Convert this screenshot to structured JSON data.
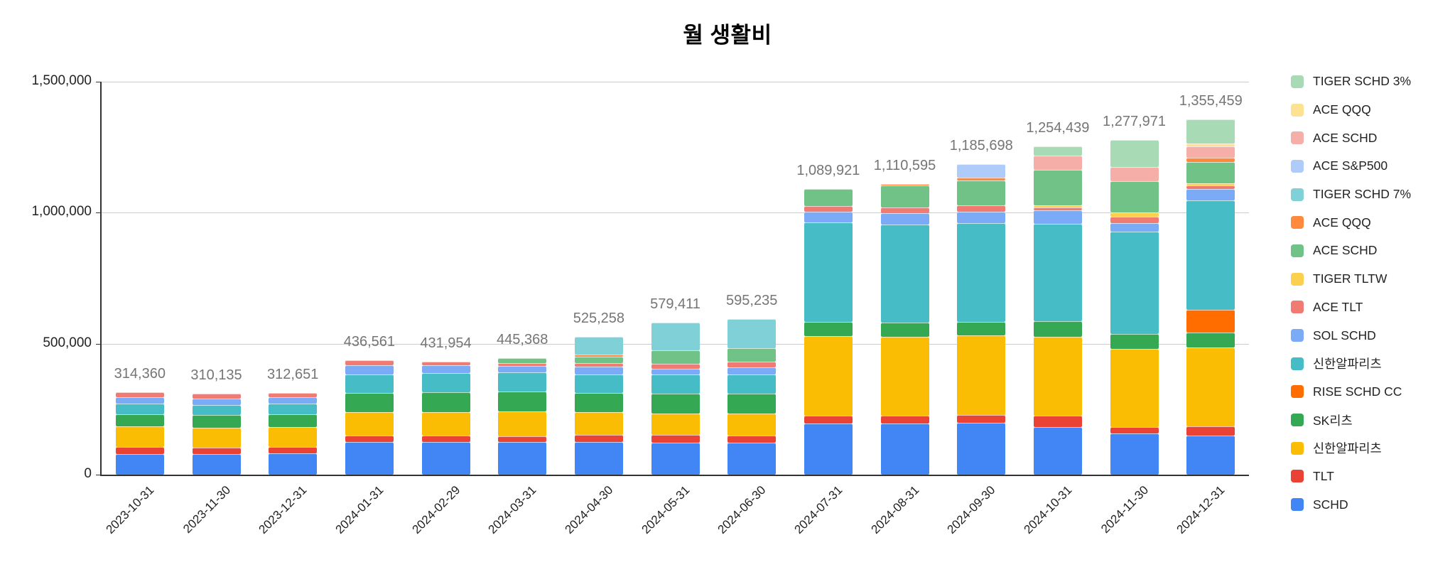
{
  "page": {
    "background": "#ffffff"
  },
  "chart_data": {
    "type": "bar",
    "stacked": true,
    "title": "월 생활비",
    "legend_position": "right",
    "grid": true,
    "y_axis": {
      "max": 1500000,
      "ticks": [
        {
          "label": "1,500,000",
          "value": 1500000
        },
        {
          "label": "1,000,000",
          "value": 1000000
        },
        {
          "label": "500,000",
          "value": 500000
        },
        {
          "label": "0",
          "value": 0
        }
      ]
    },
    "categories": [
      "2023-10-31",
      "2023-11-30",
      "2023-12-31",
      "2024-01-31",
      "2024-02-29",
      "2024-03-31",
      "2024-04-30",
      "2024-05-31",
      "2024-06-30",
      "2024-07-31",
      "2024-08-31",
      "2024-09-30",
      "2024-10-31",
      "2024-11-30",
      "2024-12-31"
    ],
    "totals": [
      "314,360",
      "310,135",
      "312,651",
      "436,561",
      "431,954",
      "445,368",
      "525,258",
      "579,411",
      "595,235",
      "1,089,921",
      "1,110,595",
      "1,185,698",
      "1,254,439",
      "1,277,971",
      "1,355,459"
    ],
    "series": [
      {
        "name": "SCHD",
        "color": "#4285F4",
        "values": [
          80000,
          79000,
          80951,
          124000,
          126000,
          126000,
          126000,
          122000,
          123000,
          196500,
          194300,
          197900,
          182300,
          156500,
          148500
        ]
      },
      {
        "name": "TLT",
        "color": "#EA4335",
        "values": [
          27000,
          25500,
          23900,
          24500,
          22800,
          21000,
          25100,
          30000,
          27000,
          29000,
          31300,
          29700,
          43300,
          26100,
          35400
        ]
      },
      {
        "name": "신한알파리츠",
        "color": "#FBBC04",
        "values": [
          77000,
          75500,
          76300,
          89000,
          91300,
          95500,
          87000,
          81500,
          83500,
          303500,
          300000,
          303200,
          299600,
          297300,
          303000
        ]
      },
      {
        "name": "SK리츠",
        "color": "#34A853",
        "values": [
          48000,
          47300,
          48700,
          74000,
          74800,
          74500,
          74500,
          76000,
          76000,
          54000,
          53700,
          52200,
          59600,
          57400,
          55600
        ]
      },
      {
        "name": "RISE SCHD CC",
        "color": "#FF6D00",
        "values": [
          0,
          0,
          0,
          0,
          0,
          0,
          0,
          0,
          0,
          0,
          0,
          0,
          0,
          0,
          85900
        ]
      },
      {
        "name": "신한알파리츠",
        "color": "#46BDC6",
        "values": [
          39000,
          38200,
          41400,
          70500,
          73200,
          73000,
          69500,
          72500,
          72000,
          381000,
          376200,
          377698,
          371839,
          391171,
          419059
        ]
      },
      {
        "name": "SOL SCHD",
        "color": "#7BAAF7",
        "values": [
          26000,
          23600,
          25700,
          36500,
          30100,
          25500,
          31500,
          23500,
          28800,
          40500,
          43000,
          44100,
          52300,
          31300,
          43400
        ]
      },
      {
        "name": "ACE TLT",
        "color": "#F07B72",
        "values": [
          17360,
          21035,
          15700,
          18061,
          13754,
          11000,
          13500,
          18000,
          21500,
          20700,
          20600,
          22500,
          10800,
          26100,
          14100
        ]
      },
      {
        "name": "TIGER TLTW",
        "color": "#FCD04F",
        "values": [
          0,
          0,
          0,
          0,
          0,
          0,
          0,
          0,
          0,
          0,
          0,
          0,
          9000,
          15600,
          8100
        ]
      },
      {
        "name": "ACE SCHD",
        "color": "#71C287",
        "values": [
          0,
          0,
          0,
          0,
          0,
          18868,
          24200,
          52500,
          52000,
          64721,
          84295,
          97200,
          135400,
          120000,
          80800
        ]
      },
      {
        "name": "ACE QQQ",
        "color": "#FF8A3E",
        "values": [
          0,
          0,
          0,
          0,
          0,
          0,
          7000,
          0,
          0,
          0,
          7200,
          10800,
          0,
          0,
          15200
        ]
      },
      {
        "name": "TIGER SCHD 7%",
        "color": "#7FD1D7",
        "values": [
          0,
          0,
          0,
          0,
          0,
          0,
          66958,
          103411,
          111435,
          0,
          0,
          0,
          0,
          0,
          0
        ]
      },
      {
        "name": "ACE S&P500",
        "color": "#AECBFA",
        "values": [
          0,
          0,
          0,
          0,
          0,
          0,
          0,
          0,
          0,
          0,
          0,
          50400,
          0,
          0,
          0
        ]
      },
      {
        "name": "ACE SCHD",
        "color": "#F6AEA9",
        "values": [
          0,
          0,
          0,
          0,
          0,
          0,
          0,
          0,
          0,
          0,
          0,
          0,
          54200,
          52200,
          43400
        ]
      },
      {
        "name": "ACE QQQ",
        "color": "#FDE293",
        "values": [
          0,
          0,
          0,
          0,
          0,
          0,
          0,
          0,
          0,
          0,
          0,
          0,
          0,
          0,
          12100
        ]
      },
      {
        "name": "TIGER SCHD 3%",
        "color": "#A8DAB5",
        "values": [
          0,
          0,
          0,
          0,
          0,
          0,
          0,
          0,
          0,
          0,
          0,
          0,
          36100,
          104300,
          90900
        ]
      }
    ],
    "colors": {
      "total_label": "#757575",
      "axis_text": "#222222",
      "gridline": "#cccccc",
      "axis_line": "#333333"
    }
  }
}
